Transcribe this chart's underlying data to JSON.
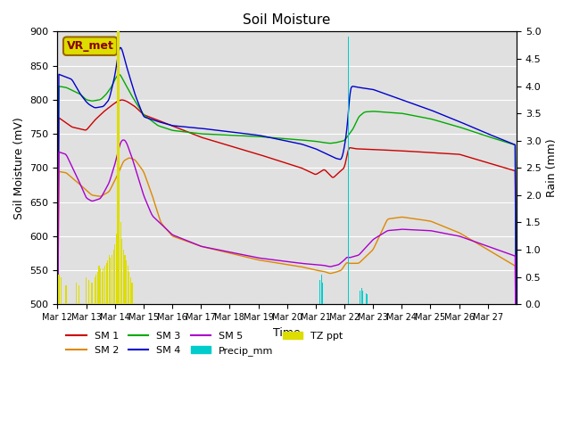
{
  "title": "Soil Moisture",
  "xlabel": "Time",
  "ylabel_left": "Soil Moisture (mV)",
  "ylabel_right": "Rain (mm)",
  "ylim_left": [
    500,
    900
  ],
  "ylim_right": [
    0.0,
    5.0
  ],
  "yticks_left": [
    500,
    550,
    600,
    650,
    700,
    750,
    800,
    850,
    900
  ],
  "yticks_right": [
    0.0,
    0.5,
    1.0,
    1.5,
    2.0,
    2.5,
    3.0,
    3.5,
    4.0,
    4.5,
    5.0
  ],
  "xtick_labels": [
    "Mar 12",
    "Mar 13",
    "Mar 14",
    "Mar 15",
    "Mar 16",
    "Mar 17",
    "Mar 18",
    "Mar 19",
    "Mar 20",
    "Mar 21",
    "Mar 22",
    "Mar 23",
    "Mar 24",
    "Mar 25",
    "Mar 26",
    "Mar 27"
  ],
  "colors": {
    "SM1": "#cc0000",
    "SM2": "#dd8800",
    "SM3": "#00aa00",
    "SM4": "#0000cc",
    "SM5": "#aa00cc",
    "Precip": "#00cccc",
    "TZ_ppt": "#dddd00"
  },
  "bg_color": "#e0e0e0",
  "legend_box_facecolor": "#dddd00",
  "legend_box_edgecolor": "#996600",
  "legend_box_text": "VR_met",
  "legend_text_color": "#880000"
}
